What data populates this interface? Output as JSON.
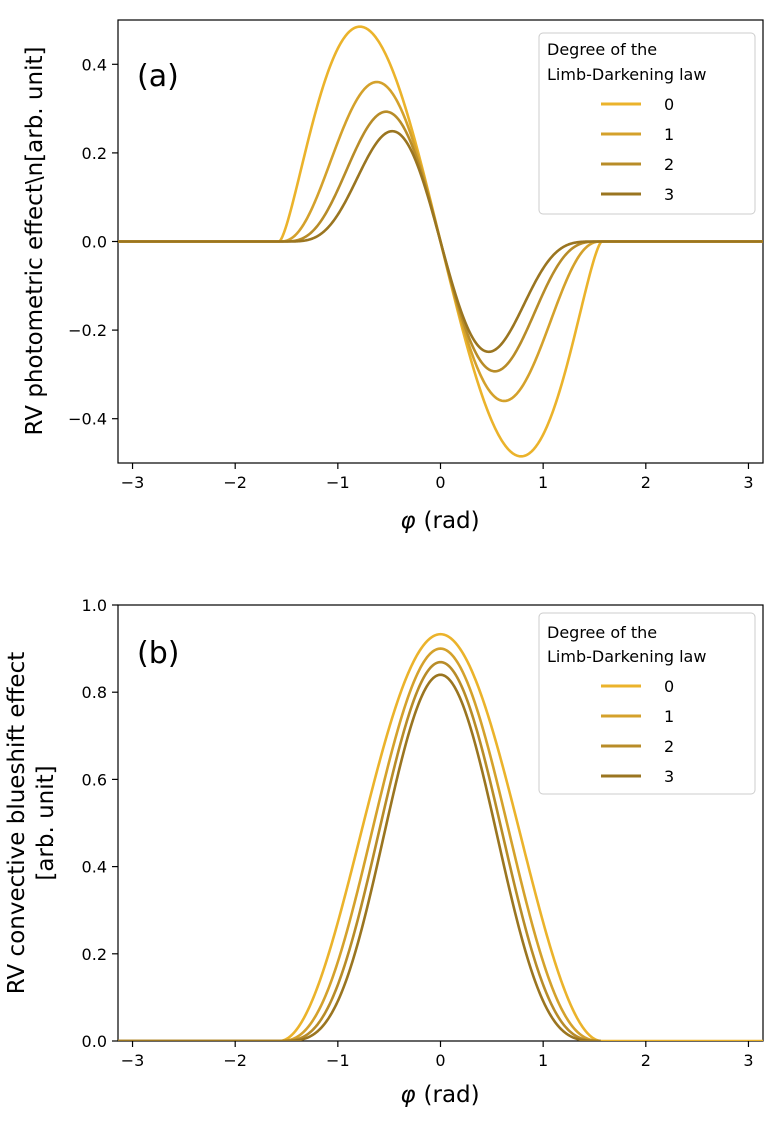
{
  "figure": {
    "x_variable": "φ",
    "x_unit": "(rad)",
    "legend_title_line1": "Degree of the",
    "legend_title_line2": "Limb-Darkening law"
  },
  "chart_data": [
    {
      "type": "line",
      "panel_label": "(a)",
      "title": "",
      "xlabel": "φ (rad)",
      "ylabel": "RV photometric effect\\n[arb. unit]",
      "xlim": [
        -3.1416,
        3.1416
      ],
      "ylim": [
        -0.5,
        0.5
      ],
      "xticks": [
        -3,
        -2,
        -1,
        0,
        1,
        2,
        3
      ],
      "xtick_labels": [
        "−3",
        "−2",
        "−1",
        "0",
        "1",
        "2",
        "3"
      ],
      "yticks": [
        -0.4,
        -0.2,
        0.0,
        0.2,
        0.4
      ],
      "ytick_labels": [
        "−0.4",
        "−0.2",
        "0.0",
        "0.2",
        "0.4"
      ],
      "legend_position": "top-right",
      "model": "photometric",
      "series": [
        {
          "name": "0",
          "color": "#ebb32b",
          "amplitude": 0.485,
          "peak_phase": -0.785,
          "support": 1.5708
        },
        {
          "name": "1",
          "color": "#d4a12b",
          "amplitude": 0.36,
          "peak_phase": -0.62,
          "support": 1.5708
        },
        {
          "name": "2",
          "color": "#b88c28",
          "amplitude": 0.293,
          "peak_phase": -0.53,
          "support": 1.5708
        },
        {
          "name": "3",
          "color": "#9a7520",
          "amplitude": 0.249,
          "peak_phase": -0.47,
          "support": 1.5708
        }
      ]
    },
    {
      "type": "line",
      "panel_label": "(b)",
      "title": "",
      "xlabel": "φ (rad)",
      "ylabel_line1": "RV convective blueshift effect",
      "ylabel_line2": "[arb. unit]",
      "xlim": [
        -3.1416,
        3.1416
      ],
      "ylim": [
        0.0,
        1.0
      ],
      "xticks": [
        -3,
        -2,
        -1,
        0,
        1,
        2,
        3
      ],
      "xtick_labels": [
        "−3",
        "−2",
        "−1",
        "0",
        "1",
        "2",
        "3"
      ],
      "yticks": [
        0.0,
        0.2,
        0.4,
        0.6,
        0.8,
        1.0
      ],
      "ytick_labels": [
        "0.0",
        "0.2",
        "0.4",
        "0.6",
        "0.8",
        "1.0"
      ],
      "legend_position": "top-right",
      "model": "convective",
      "series": [
        {
          "name": "0",
          "color": "#ebb32b",
          "peak": 0.933,
          "exponent": 2.0,
          "support": 1.5708
        },
        {
          "name": "1",
          "color": "#d4a12b",
          "peak": 0.9,
          "exponent": 2.6,
          "support": 1.5708
        },
        {
          "name": "2",
          "color": "#b88c28",
          "peak": 0.869,
          "exponent": 3.1,
          "support": 1.5708
        },
        {
          "name": "3",
          "color": "#9a7520",
          "peak": 0.84,
          "exponent": 3.6,
          "support": 1.5708
        }
      ]
    }
  ]
}
